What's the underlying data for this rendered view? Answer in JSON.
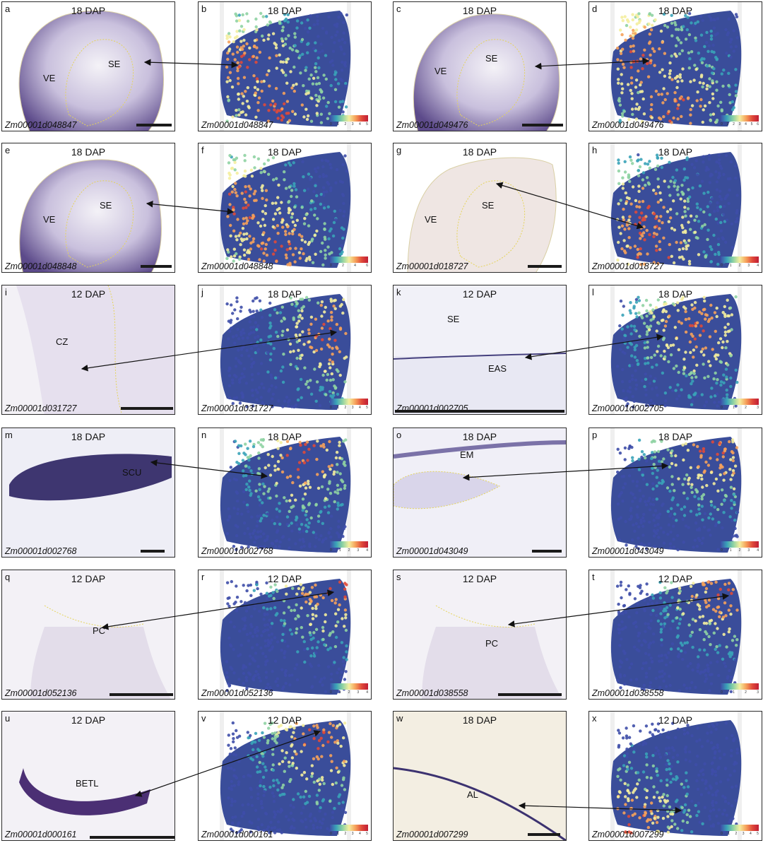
{
  "figure": {
    "panels": [
      {
        "letter": "a",
        "title": "18 DAP",
        "gene": "Zm00001d048847",
        "kind": "section",
        "regions": [
          "VE",
          "SE"
        ],
        "colorbar": []
      },
      {
        "letter": "b",
        "title": "18 DAP",
        "gene": "Zm00001d048847",
        "kind": "spatial",
        "regions": [],
        "colorbar": [
          "0",
          "1",
          "2",
          "3",
          "4",
          "5"
        ]
      },
      {
        "letter": "c",
        "title": "18 DAP",
        "gene": "Zm00001d049476",
        "kind": "section",
        "regions": [
          "VE",
          "SE"
        ],
        "colorbar": []
      },
      {
        "letter": "d",
        "title": "18 DAP",
        "gene": "Zm00001d049476",
        "kind": "spatial",
        "regions": [],
        "colorbar": [
          "0",
          "1",
          "2",
          "3",
          "4",
          "5",
          "6"
        ]
      },
      {
        "letter": "e",
        "title": "18 DAP",
        "gene": "Zm00001d048848",
        "kind": "section",
        "regions": [
          "VE",
          "SE"
        ],
        "colorbar": []
      },
      {
        "letter": "f",
        "title": "18 DAP",
        "gene": "Zm00001d048848",
        "kind": "spatial",
        "regions": [],
        "colorbar": [
          "0",
          "2",
          "4",
          "6"
        ]
      },
      {
        "letter": "g",
        "title": "18 DAP",
        "gene": "Zm00001d018727",
        "kind": "section",
        "regions": [
          "VE",
          "SE"
        ],
        "colorbar": []
      },
      {
        "letter": "h",
        "title": "18 DAP",
        "gene": "Zm00001d018727",
        "kind": "spatial",
        "regions": [],
        "colorbar": [
          "0",
          "1",
          "2",
          "3",
          "4"
        ]
      },
      {
        "letter": "i",
        "title": "12 DAP",
        "gene": "Zm00001d031727",
        "kind": "section",
        "regions": [
          "CZ"
        ],
        "colorbar": []
      },
      {
        "letter": "j",
        "title": "18 DAP",
        "gene": "Zm00001d031727",
        "kind": "spatial",
        "regions": [],
        "colorbar": [
          "0",
          "1",
          "2",
          "3",
          "4",
          "5"
        ]
      },
      {
        "letter": "k",
        "title": "12 DAP",
        "gene": "Zm00001d002705",
        "kind": "section",
        "regions": [
          "SE",
          "EAS"
        ],
        "colorbar": []
      },
      {
        "letter": "l",
        "title": "18 DAP",
        "gene": "Zm00001d002705",
        "kind": "spatial",
        "regions": [],
        "colorbar": [
          "0",
          "1",
          "2",
          "3"
        ]
      },
      {
        "letter": "m",
        "title": "18 DAP",
        "gene": "Zm00001d002768",
        "kind": "section",
        "regions": [
          "SCU"
        ],
        "colorbar": []
      },
      {
        "letter": "n",
        "title": "18 DAP",
        "gene": "Zm00001d002768",
        "kind": "spatial",
        "regions": [],
        "colorbar": [
          "0",
          "1",
          "2",
          "3",
          "4"
        ]
      },
      {
        "letter": "o",
        "title": "18 DAP",
        "gene": "Zm00001d043049",
        "kind": "section",
        "regions": [
          "EM"
        ],
        "colorbar": []
      },
      {
        "letter": "p",
        "title": "18 DAP",
        "gene": "Zm00001d043049",
        "kind": "spatial",
        "regions": [],
        "colorbar": [
          "0",
          "1",
          "2",
          "3",
          "4"
        ]
      },
      {
        "letter": "q",
        "title": "12 DAP",
        "gene": "Zm00001d052136",
        "kind": "section",
        "regions": [
          "PC"
        ],
        "colorbar": []
      },
      {
        "letter": "r",
        "title": "12 DAP",
        "gene": "Zm00001d052136",
        "kind": "spatial",
        "regions": [],
        "colorbar": [
          "0",
          "1",
          "2",
          "3",
          "4"
        ]
      },
      {
        "letter": "s",
        "title": "12 DAP",
        "gene": "Zm00001d038558",
        "kind": "section",
        "regions": [
          "PC"
        ],
        "colorbar": []
      },
      {
        "letter": "t",
        "title": "12 DAP",
        "gene": "Zm00001d038558",
        "kind": "spatial",
        "regions": [],
        "colorbar": [
          "0",
          "1",
          "2",
          "3"
        ]
      },
      {
        "letter": "u",
        "title": "12 DAP",
        "gene": "Zm00001d000161",
        "kind": "section",
        "regions": [
          "BETL"
        ],
        "colorbar": []
      },
      {
        "letter": "v",
        "title": "12 DAP",
        "gene": "Zm00001d000161",
        "kind": "spatial",
        "regions": [],
        "colorbar": [
          "0",
          "1",
          "2",
          "3",
          "4",
          "5"
        ]
      },
      {
        "letter": "w",
        "title": "18 DAP",
        "gene": "Zm00001d007299",
        "kind": "section",
        "regions": [
          "AL"
        ],
        "colorbar": []
      },
      {
        "letter": "x",
        "title": "12 DAP",
        "gene": "Zm00001d007299",
        "kind": "spatial",
        "regions": [],
        "colorbar": [
          "0",
          "1",
          "2",
          "3",
          "4",
          "5"
        ]
      }
    ]
  }
}
